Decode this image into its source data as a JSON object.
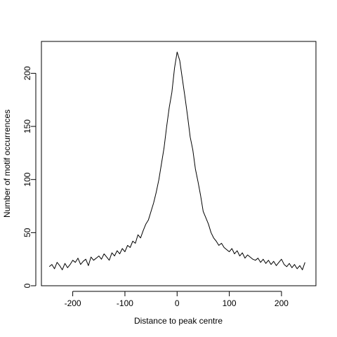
{
  "chart_data": {
    "type": "line",
    "title": "",
    "xlabel": "Distance to peak centre",
    "ylabel": "Number of motif occurrences",
    "xlim": [
      -260,
      266
    ],
    "ylim": [
      0,
      230
    ],
    "xticks": [
      -200,
      -100,
      0,
      100,
      200
    ],
    "xtick_labels": [
      "-200",
      "-100",
      "0",
      "100",
      "200"
    ],
    "yticks": [
      0,
      50,
      100,
      150,
      200
    ],
    "ytick_labels": [
      "0",
      "50",
      "100",
      "150",
      "200"
    ],
    "grid": false,
    "series": [
      {
        "name": "",
        "color": "#000000",
        "x": [
          -245,
          -240,
          -235,
          -230,
          -225,
          -220,
          -215,
          -210,
          -205,
          -200,
          -195,
          -190,
          -185,
          -180,
          -175,
          -170,
          -165,
          -160,
          -155,
          -150,
          -145,
          -140,
          -135,
          -130,
          -125,
          -120,
          -115,
          -110,
          -105,
          -100,
          -95,
          -90,
          -85,
          -80,
          -75,
          -70,
          -65,
          -60,
          -55,
          -50,
          -45,
          -40,
          -35,
          -30,
          -25,
          -20,
          -15,
          -10,
          -5,
          0,
          5,
          10,
          15,
          20,
          25,
          30,
          35,
          40,
          45,
          50,
          55,
          60,
          65,
          70,
          75,
          80,
          85,
          90,
          95,
          100,
          105,
          110,
          115,
          120,
          125,
          130,
          135,
          140,
          145,
          150,
          155,
          160,
          165,
          170,
          175,
          180,
          185,
          190,
          195,
          200,
          205,
          210,
          215,
          220,
          225,
          230,
          235,
          240,
          245
        ],
        "y": [
          18,
          20,
          16,
          22,
          19,
          15,
          21,
          17,
          20,
          24,
          22,
          26,
          20,
          23,
          25,
          19,
          27,
          24,
          26,
          28,
          25,
          30,
          27,
          24,
          31,
          28,
          33,
          30,
          35,
          32,
          38,
          36,
          42,
          40,
          48,
          45,
          52,
          58,
          62,
          70,
          78,
          88,
          100,
          115,
          130,
          150,
          168,
          182,
          205,
          220,
          212,
          195,
          178,
          160,
          140,
          128,
          110,
          98,
          85,
          70,
          64,
          58,
          50,
          45,
          42,
          38,
          40,
          36,
          34,
          32,
          35,
          30,
          33,
          28,
          31,
          26,
          29,
          27,
          25,
          24,
          26,
          22,
          25,
          21,
          24,
          20,
          23,
          19,
          22,
          25,
          20,
          18,
          21,
          17,
          20,
          16,
          19,
          15,
          22
        ]
      }
    ]
  }
}
